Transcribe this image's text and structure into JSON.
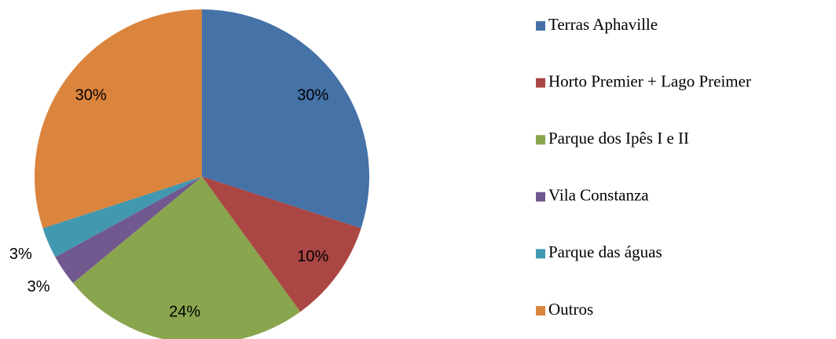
{
  "chart_data": {
    "type": "pie",
    "categories": [
      "Terras Aphaville",
      "Horto Premier + Lago Preimer",
      "Parque dos Ipês I e II",
      "Vila Constanza",
      "Parque das águas",
      "Outros"
    ],
    "values": [
      30,
      10,
      24,
      3,
      3,
      30
    ],
    "value_labels": [
      "30%",
      "10%",
      "24%",
      "3%",
      "3%",
      "30%"
    ],
    "colors": [
      "#4572a7",
      "#aa4643",
      "#89a54e",
      "#71588f",
      "#4198af",
      "#db843d"
    ],
    "legend": "right"
  }
}
